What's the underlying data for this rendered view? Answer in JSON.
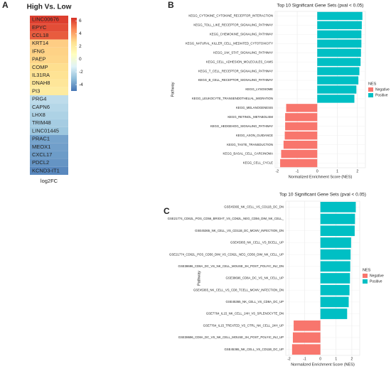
{
  "chart_data": [
    {
      "type": "heatmap",
      "panel": "A",
      "title": "High Vs. Low",
      "xlabel": "log2FC",
      "categories": [
        "LINC00676",
        "EPYC",
        "CCL18",
        "KRT14",
        "IFNG",
        "PAEP",
        "COMP",
        "IL31RA",
        "DNAH8",
        "PI3",
        "PRG4",
        "CAPN6",
        "LHX8",
        "TRIM48",
        "LINC01445",
        "PRAC1",
        "MEOX1",
        "CXCL17",
        "PDCL2",
        "KCND3-IT1"
      ],
      "values": [
        6.2,
        5.9,
        5.6,
        3.1,
        3.0,
        2.9,
        2.7,
        2.5,
        2.3,
        2.0,
        -2.0,
        -2.2,
        -2.4,
        -2.6,
        -2.8,
        -3.8,
        -3.9,
        -4.0,
        -4.2,
        -4.5
      ],
      "clim": [
        -5,
        6.5
      ],
      "cticks": [
        6,
        4,
        2,
        0,
        -2,
        -4
      ],
      "colors": [
        "#4575b4",
        "#91bfdb",
        "#e0f3f8",
        "#ffffbf",
        "#fee090",
        "#fc8d59",
        "#d73027"
      ]
    },
    {
      "type": "hbar",
      "panel": "B",
      "title": "Top 10 Significant Gene Sets (pval < 0.05)",
      "xlabel": "Normalized Enrichment Score (NES)",
      "ylabel": "Pathway",
      "legend_title": "NES",
      "categories": [
        "KEGG_CYTOKINE_CYTOKINE_RECEPTOR_INTERACTION",
        "KEGG_TOLL_LIKE_RECEPTOR_SIGNALING_PATHWAY",
        "KEGG_CHEMOKINE_SIGNALING_PATHWAY",
        "KEGG_NATURAL_KILLER_CELL_MEDIATED_CYTOTOXICITY",
        "KEGG_JAK_STAT_SIGNALING_PATHWAY",
        "KEGG_CELL_ADHESION_MOLECULES_CAMS",
        "KEGG_T_CELL_RECEPTOR_SIGNALING_PATHWAY",
        "KEGG_B_CELL_RECEPTOR_SIGNALING_PATHWAY",
        "KEGG_LYSOSOME",
        "KEGG_LEUKOCYTE_TRANSENDOTHELIAL_MIGRATION",
        "KEGG_MELANOGENESIS",
        "KEGG_RETINOL_METABOLISM",
        "KEGG_HEDGEHOG_SIGNALING_PATHWAY",
        "KEGG_AXON_GUIDANCE",
        "KEGG_TASTE_TRANSDUCTION",
        "KEGG_BASAL_CELL_CARCINOMA",
        "KEGG_CELL_CYCLE"
      ],
      "series": [
        {
          "name": "Negative",
          "color": "#f8766d",
          "values": [
            null,
            null,
            null,
            null,
            null,
            null,
            null,
            null,
            null,
            null,
            -1.55,
            -1.6,
            -1.6,
            -1.62,
            -1.68,
            -1.8,
            -1.85
          ]
        },
        {
          "name": "Positive",
          "color": "#00bfc4",
          "values": [
            2.25,
            2.22,
            2.2,
            2.2,
            2.18,
            2.16,
            2.1,
            2.05,
            1.95,
            1.85,
            null,
            null,
            null,
            null,
            null,
            null,
            null
          ]
        }
      ],
      "xlim": [
        -2.1,
        2.4
      ],
      "xticks": [
        -2,
        -1,
        0,
        1,
        2
      ],
      "grid": true
    },
    {
      "type": "hbar",
      "panel": "C",
      "title": "Top 10 Significant Gene Sets (pval < 0.05)",
      "xlabel": "Normalized Enrichment Score (NES)",
      "ylabel": "Pathway",
      "legend_title": "NES",
      "categories": [
        "GSE45365_NK_CELL_VS_CD11B_DC_DN",
        "GSE21774_CD62L_POS_CD56_BRIGHT_VS_CD62L_NEG_CD56_DIM_NK_CELL_",
        "GSE45365_NK_CELL_VS_CD11B_DC_MCMV_INFECTION_DN",
        "GSE45365_NK_CELL_VS_BCELL_UP",
        "GSE21774_CD62L_POS_CD56_DIM_VS_CD62L_NEG_CD56_DIM_NK_CELL_UP",
        "GSE38696_CD8A_DC_VS_NK_CELL_MOUSE_3H_POST_POLYIC_INJ_DN",
        "GSE38696_CD8A_DC_VS_NK_CELL_UP",
        "GSE45365_NK_CELL_VS_CD8_TCELL_MCMV_INFECTION_DN",
        "GSE45365_NK_CELL_VS_CD8A_DC_UP",
        "GSE7764_IL15_NK_CELL_24H_VS_SPLENOCYTE_DN",
        "GSE7764_IL15_TREATED_VS_CTRL_NK_CELL_24H_UP",
        "GSE38696_CD8A_DC_VS_NK_CELL_MOUSE_3H_POST_POLYIC_INJ_UP",
        "GSE45365_NK_CELL_VS_CD11B_DC_UP"
      ],
      "series": [
        {
          "name": "Negative",
          "color": "#f8766d",
          "values": [
            null,
            null,
            null,
            null,
            null,
            null,
            null,
            null,
            null,
            null,
            -1.7,
            -1.75,
            -1.8
          ]
        },
        {
          "name": "Positive",
          "color": "#00bfc4",
          "values": [
            2.25,
            2.2,
            2.18,
            1.95,
            1.92,
            1.9,
            1.88,
            1.85,
            1.8,
            1.7,
            null,
            null,
            null
          ]
        }
      ],
      "xlim": [
        -2.2,
        2.5
      ],
      "xticks": [
        -2,
        -1,
        0,
        1,
        2
      ],
      "grid": true
    }
  ]
}
